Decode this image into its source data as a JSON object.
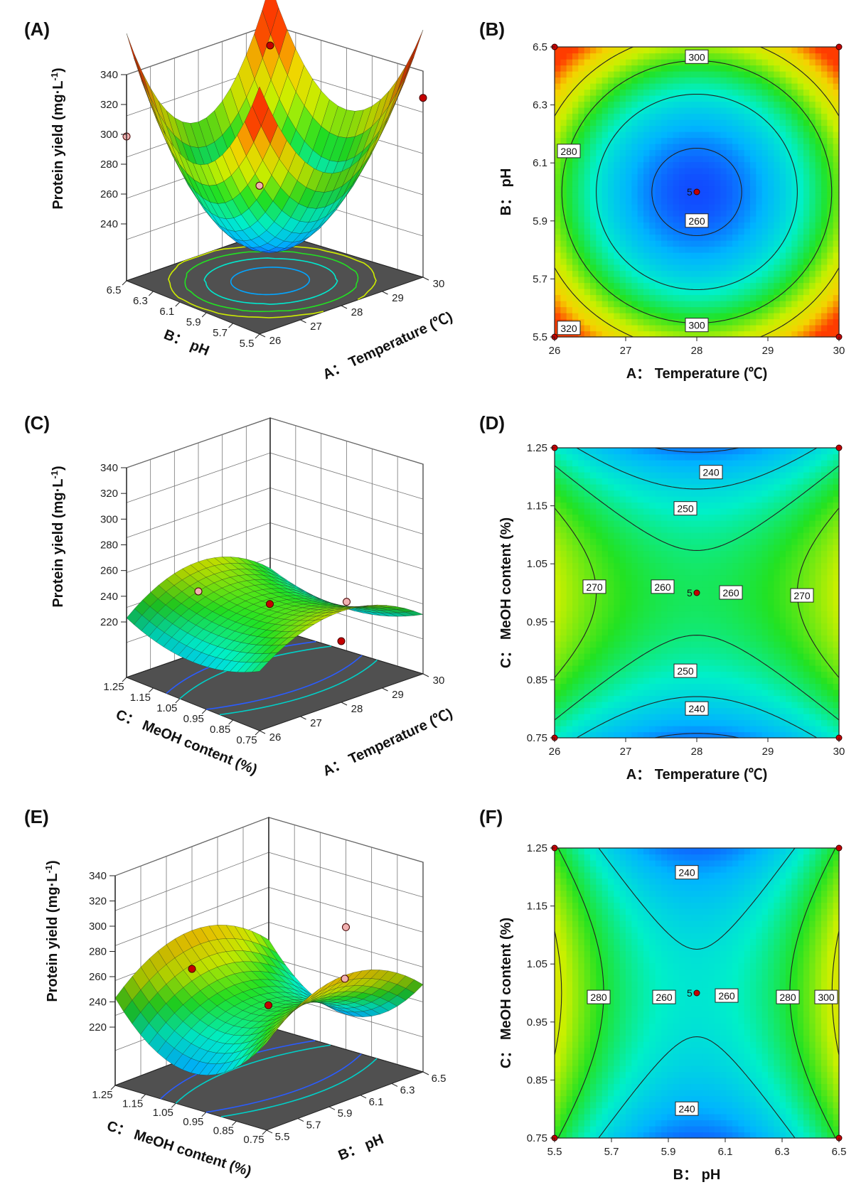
{
  "panels": {
    "A": "(A)",
    "B": "(B)",
    "C": "(C)",
    "D": "(D)",
    "E": "(E)",
    "F": "(F)"
  },
  "chart_data": [
    {
      "id": "A",
      "type": "surface3d",
      "zlabel": "Protein yield (mg·L⁻¹)",
      "xlabel": "A： Temperature (℃)",
      "ylabel": "B： pH",
      "x_ticks": [
        "26",
        "27",
        "28",
        "29",
        "30"
      ],
      "y_ticks": [
        "6.5",
        "6.3",
        "6.1",
        "5.9",
        "5.7",
        "5.5"
      ],
      "z_ticks": [
        "240",
        "260",
        "280",
        "300",
        "320",
        "340"
      ],
      "xlim": [
        26,
        30
      ],
      "ylim": [
        5.5,
        6.5
      ],
      "zlim": [
        240,
        340
      ],
      "colormap": [
        "#1414ff",
        "#00c8ff",
        "#22e222",
        "#e6e600",
        "#ff2a00"
      ]
    },
    {
      "id": "B",
      "type": "contour",
      "xlabel": "A： Temperature (℃)",
      "ylabel": "B： pH",
      "x_ticks": [
        "26",
        "27",
        "28",
        "29",
        "30"
      ],
      "y_ticks": [
        "5.5",
        "5.7",
        "5.9",
        "6.1",
        "6.3",
        "6.5"
      ],
      "xlim": [
        26,
        30
      ],
      "ylim": [
        5.5,
        6.5
      ],
      "contour_labels": [
        "300",
        "280",
        "260",
        "300",
        "320"
      ],
      "center_label": "5",
      "colormap": [
        "#1414ff",
        "#00c8ff",
        "#22e222",
        "#e6e600",
        "#ff2a00"
      ]
    },
    {
      "id": "C",
      "type": "surface3d",
      "zlabel": "Protein yield (mg·L⁻¹)",
      "xlabel": "A： Temperature (℃)",
      "ylabel": "C： MeOH content (%)",
      "x_ticks": [
        "26",
        "27",
        "28",
        "29",
        "30"
      ],
      "y_ticks": [
        "1.25",
        "1.15",
        "1.05",
        "0.95",
        "0.85",
        "0.75"
      ],
      "z_ticks": [
        "220",
        "240",
        "260",
        "280",
        "300",
        "320",
        "340"
      ],
      "xlim": [
        26,
        30
      ],
      "ylim": [
        0.75,
        1.25
      ],
      "zlim": [
        220,
        340
      ]
    },
    {
      "id": "D",
      "type": "contour",
      "xlabel": "A： Temperature (℃)",
      "ylabel": "C： MeOH content (%)",
      "x_ticks": [
        "26",
        "27",
        "28",
        "29",
        "30"
      ],
      "y_ticks": [
        "0.75",
        "0.85",
        "0.95",
        "1.05",
        "1.15",
        "1.25"
      ],
      "xlim": [
        26,
        30
      ],
      "ylim": [
        0.75,
        1.25
      ],
      "contour_labels": [
        "240",
        "250",
        "270",
        "260",
        "260",
        "270",
        "250",
        "240"
      ],
      "center_label": "5"
    },
    {
      "id": "E",
      "type": "surface3d",
      "zlabel": "Protein yield (mg·L⁻¹)",
      "xlabel": "B： pH",
      "ylabel": "C： MeOH content (%)",
      "x_ticks": [
        "5.5",
        "5.7",
        "5.9",
        "6.1",
        "6.3",
        "6.5"
      ],
      "y_ticks": [
        "1.25",
        "1.15",
        "1.05",
        "0.95",
        "0.85",
        "0.75"
      ],
      "z_ticks": [
        "220",
        "240",
        "260",
        "280",
        "300",
        "320",
        "340"
      ],
      "xlim": [
        5.5,
        6.5
      ],
      "ylim": [
        0.75,
        1.25
      ],
      "zlim": [
        220,
        340
      ]
    },
    {
      "id": "F",
      "type": "contour",
      "xlabel": "B： pH",
      "ylabel": "C： MeOH content (%)",
      "x_ticks": [
        "5.5",
        "5.7",
        "5.9",
        "6.1",
        "6.3",
        "6.5"
      ],
      "y_ticks": [
        "0.75",
        "0.85",
        "0.95",
        "1.05",
        "1.15",
        "1.25"
      ],
      "xlim": [
        5.5,
        6.5
      ],
      "ylim": [
        0.75,
        1.25
      ],
      "contour_labels": [
        "240",
        "280",
        "260",
        "260",
        "280",
        "300",
        "240"
      ],
      "center_label": "5"
    }
  ]
}
